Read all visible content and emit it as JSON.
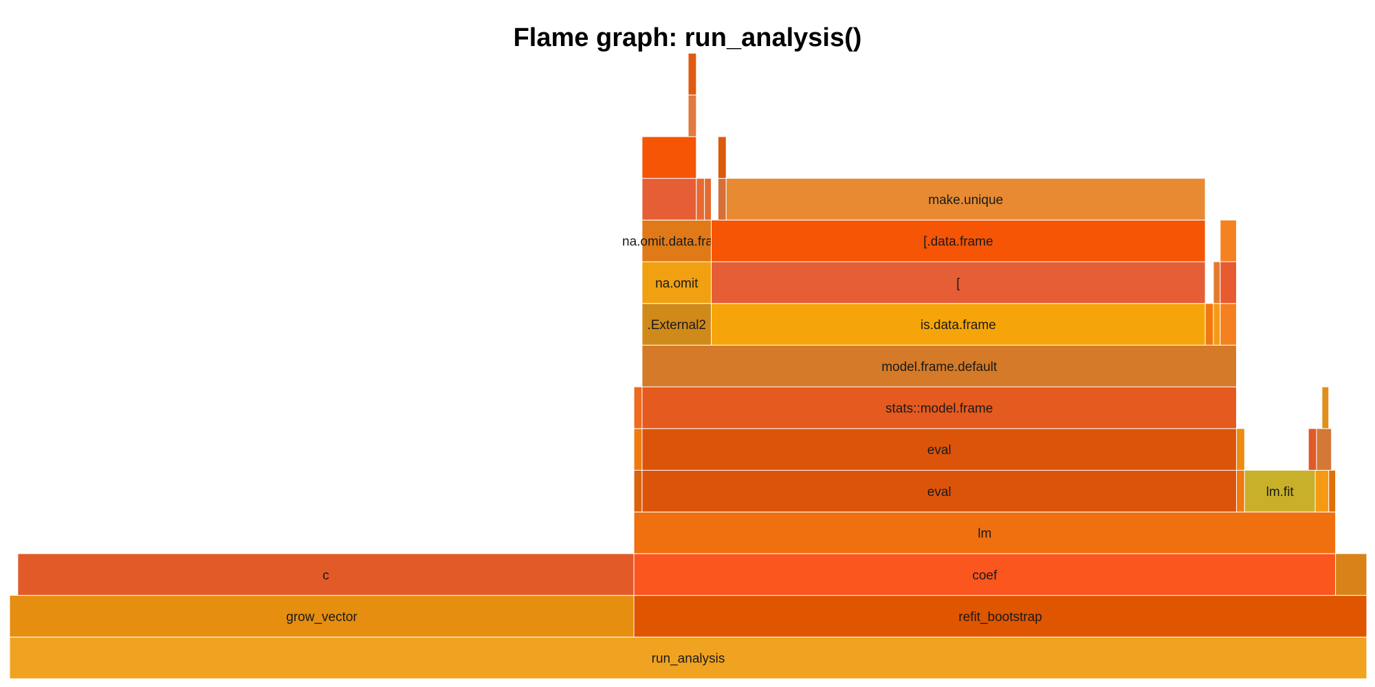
{
  "chart_data": {
    "type": "flame",
    "title": "Flame graph: run_analysis()",
    "x_range": [
      0,
      1000
    ],
    "depth_levels": 15,
    "frames": [
      {
        "label": "run_analysis",
        "start": 0,
        "end": 1000,
        "depth": 0,
        "color": "#f0a320"
      },
      {
        "label": "grow_vector",
        "start": 0,
        "end": 460,
        "depth": 1,
        "color": "#e58e10"
      },
      {
        "label": "refit_bootstrap",
        "start": 460,
        "end": 1000,
        "depth": 1,
        "color": "#e05500"
      },
      {
        "label": "c",
        "start": 6,
        "end": 460,
        "depth": 2,
        "color": "#e25a28"
      },
      {
        "label": "coef",
        "start": 460,
        "end": 977,
        "depth": 2,
        "color": "#fa561e"
      },
      {
        "label": "",
        "start": 977,
        "end": 1000,
        "depth": 2,
        "color": "#d98218"
      },
      {
        "label": "lm",
        "start": 460,
        "end": 977,
        "depth": 3,
        "color": "#f07010"
      },
      {
        "label": "",
        "start": 460,
        "end": 466,
        "depth": 4,
        "color": "#d9620e"
      },
      {
        "label": "eval",
        "start": 466,
        "end": 904,
        "depth": 4,
        "color": "#dc540a"
      },
      {
        "label": "",
        "start": 904,
        "end": 910,
        "depth": 4,
        "color": "#f07a10"
      },
      {
        "label": "lm.fit",
        "start": 910,
        "end": 962,
        "depth": 4,
        "color": "#c9b02a"
      },
      {
        "label": "",
        "start": 962,
        "end": 972,
        "depth": 4,
        "color": "#f59a12"
      },
      {
        "label": "",
        "start": 972,
        "end": 977,
        "depth": 4,
        "color": "#e07008"
      },
      {
        "label": "",
        "start": 460,
        "end": 466,
        "depth": 5,
        "color": "#f07a10"
      },
      {
        "label": "eval",
        "start": 466,
        "end": 904,
        "depth": 5,
        "color": "#dc540a"
      },
      {
        "label": "",
        "start": 904,
        "end": 910,
        "depth": 5,
        "color": "#f08a10"
      },
      {
        "label": "",
        "start": 957,
        "end": 963,
        "depth": 5,
        "color": "#e05a28"
      },
      {
        "label": "",
        "start": 963,
        "end": 974,
        "depth": 5,
        "color": "#d47838"
      },
      {
        "label": "",
        "start": 460,
        "end": 466,
        "depth": 6,
        "color": "#ee6a20"
      },
      {
        "label": "stats::model.frame",
        "start": 466,
        "end": 904,
        "depth": 6,
        "color": "#e55a1e"
      },
      {
        "label": "",
        "start": 967,
        "end": 972,
        "depth": 6,
        "color": "#e0901a"
      },
      {
        "label": "model.frame.default",
        "start": 466,
        "end": 904,
        "depth": 7,
        "color": "#d47a28"
      },
      {
        "label": ".External2",
        "start": 466,
        "end": 517,
        "depth": 8,
        "color": "#d08a1a"
      },
      {
        "label": "is.data.frame",
        "start": 517,
        "end": 881,
        "depth": 8,
        "color": "#f5a50a"
      },
      {
        "label": "",
        "start": 881,
        "end": 887,
        "depth": 8,
        "color": "#f07a10"
      },
      {
        "label": "",
        "start": 887,
        "end": 892,
        "depth": 8,
        "color": "#f59a18"
      },
      {
        "label": "",
        "start": 892,
        "end": 904,
        "depth": 8,
        "color": "#f58020"
      },
      {
        "label": "na.omit",
        "start": 466,
        "end": 517,
        "depth": 9,
        "color": "#f0a010"
      },
      {
        "label": "[",
        "start": 517,
        "end": 881,
        "depth": 9,
        "color": "#e55e36"
      },
      {
        "label": "",
        "start": 887,
        "end": 892,
        "depth": 9,
        "color": "#e27a30"
      },
      {
        "label": "",
        "start": 892,
        "end": 904,
        "depth": 9,
        "color": "#e85a30"
      },
      {
        "label": "na.omit.data.frame",
        "start": 466,
        "end": 517,
        "depth": 10,
        "color": "#e07a18"
      },
      {
        "label": "[.data.frame",
        "start": 517,
        "end": 881,
        "depth": 10,
        "color": "#f55505"
      },
      {
        "label": "",
        "start": 892,
        "end": 904,
        "depth": 10,
        "color": "#f58220"
      },
      {
        "label": "",
        "start": 466,
        "end": 506,
        "depth": 11,
        "color": "#e55e36"
      },
      {
        "label": "",
        "start": 506,
        "end": 512,
        "depth": 11,
        "color": "#e86a30"
      },
      {
        "label": "",
        "start": 512,
        "end": 517,
        "depth": 11,
        "color": "#e36a30"
      },
      {
        "label": "",
        "start": 522,
        "end": 528,
        "depth": 11,
        "color": "#d47038"
      },
      {
        "label": "make.unique",
        "start": 528,
        "end": 881,
        "depth": 11,
        "color": "#e88a32"
      },
      {
        "label": "",
        "start": 466,
        "end": 506,
        "depth": 12,
        "color": "#f55505"
      },
      {
        "label": "",
        "start": 522,
        "end": 528,
        "depth": 12,
        "color": "#dc5a0a"
      },
      {
        "label": "",
        "start": 500,
        "end": 506,
        "depth": 13,
        "color": "#e07a40"
      },
      {
        "label": "",
        "start": 500,
        "end": 506,
        "depth": 14,
        "color": "#e05a10"
      }
    ]
  }
}
